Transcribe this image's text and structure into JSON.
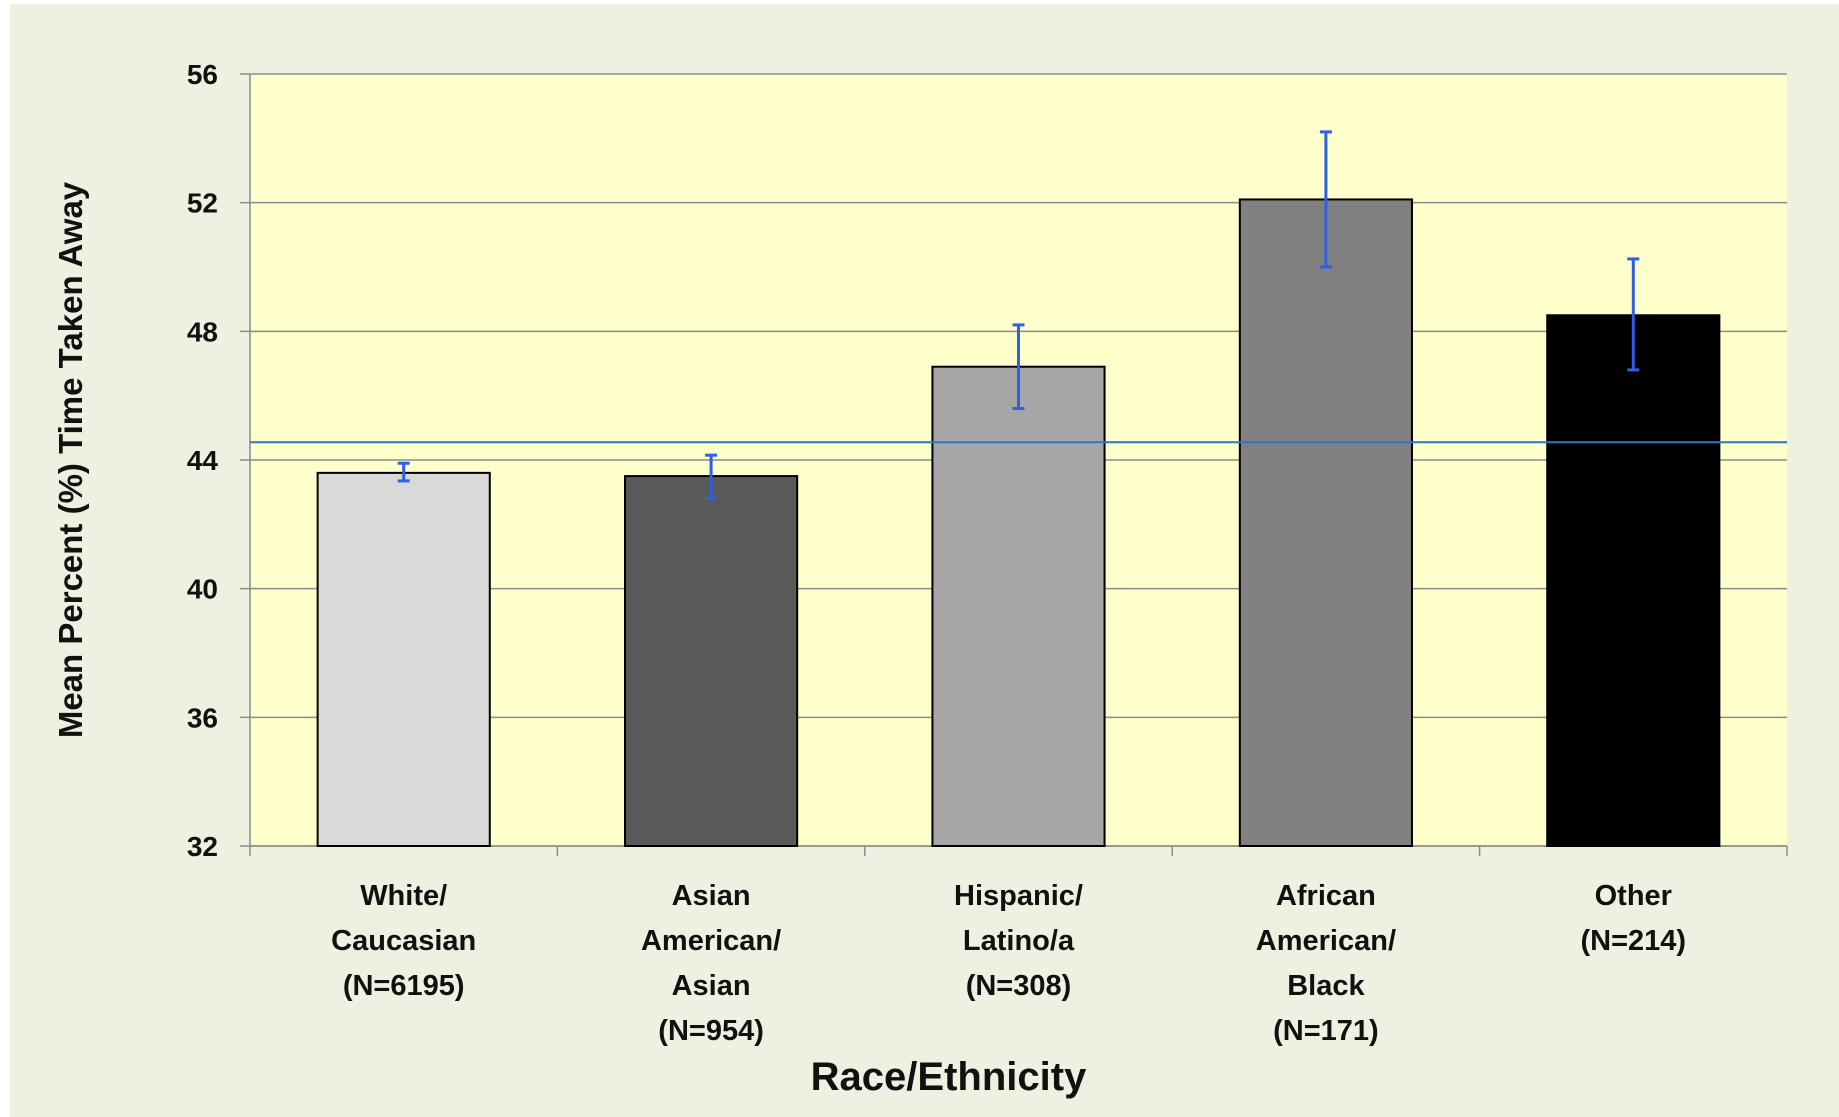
{
  "chart_data": {
    "type": "bar",
    "categories": [
      [
        "White/",
        "Caucasian",
        "(N=6195)"
      ],
      [
        "Asian",
        "American/",
        "Asian",
        "(N=954)"
      ],
      [
        "Hispanic/",
        "Latino/a",
        "(N=308)"
      ],
      [
        "African",
        "American/",
        "Black",
        "(N=171)"
      ],
      [
        "Other",
        "(N=214)"
      ]
    ],
    "values": [
      43.6,
      43.5,
      46.9,
      52.1,
      48.5
    ],
    "error_low": [
      43.35,
      42.8,
      45.6,
      50.0,
      46.8
    ],
    "error_high": [
      43.9,
      44.15,
      48.2,
      54.2,
      50.25
    ],
    "bar_colors": [
      "#d9d9d9",
      "#595959",
      "#a6a6a6",
      "#808080",
      "#000000"
    ],
    "reference_line": 44.55,
    "reference_line_color": "#2e75c6",
    "error_bar_color": "#2f5fe8",
    "plot_background": "#ffffcc",
    "page_background": "#eef0e2",
    "xlabel": "Race/Ethnicity",
    "ylabel": "Mean Percent (%) Time Taken Away",
    "ylim": [
      32,
      56
    ],
    "yticks": [
      32,
      36,
      40,
      44,
      48,
      52,
      56
    ],
    "grid": true
  }
}
